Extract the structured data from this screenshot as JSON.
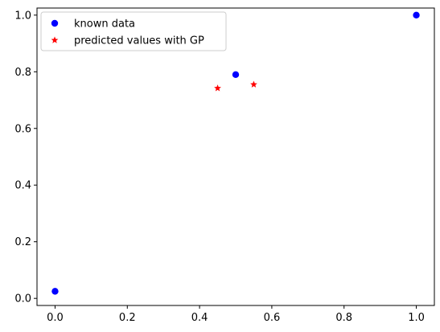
{
  "chart_data": {
    "type": "scatter",
    "title": "",
    "xlabel": "",
    "ylabel": "",
    "xlim": [
      -0.05,
      1.05
    ],
    "ylim": [
      -0.025,
      1.025
    ],
    "xticks": [
      0.0,
      0.2,
      0.4,
      0.6,
      0.8,
      1.0
    ],
    "yticks": [
      0.0,
      0.2,
      0.4,
      0.6,
      0.8,
      1.0
    ],
    "xtick_labels": [
      "0.0",
      "0.2",
      "0.4",
      "0.6",
      "0.8",
      "1.0"
    ],
    "ytick_labels": [
      "0.0",
      "0.2",
      "0.4",
      "0.6",
      "0.8",
      "1.0"
    ],
    "grid": false,
    "legend_position": "top-left",
    "series": [
      {
        "name": "known data",
        "marker": "circle",
        "color": "#0000ff",
        "points": [
          {
            "x": 0.0,
            "y": 0.025
          },
          {
            "x": 0.5,
            "y": 0.79
          },
          {
            "x": 1.0,
            "y": 1.0
          }
        ]
      },
      {
        "name": "predicted values with GP",
        "marker": "star",
        "color": "#ff0000",
        "points": [
          {
            "x": 0.45,
            "y": 0.742
          },
          {
            "x": 0.55,
            "y": 0.755
          }
        ]
      }
    ]
  }
}
